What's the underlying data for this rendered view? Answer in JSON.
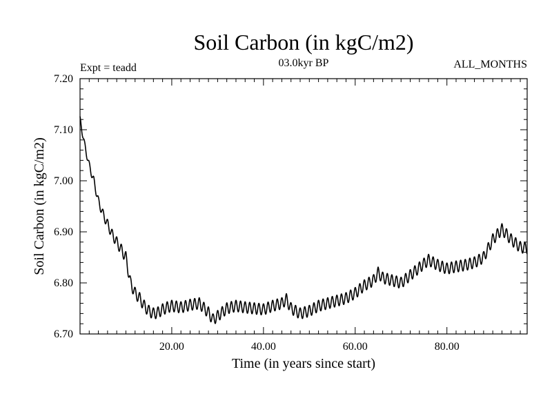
{
  "chart_data": {
    "type": "line",
    "title": "Soil Carbon (in kgC/m2)",
    "subtitle": "03.0kyr BP",
    "annotation_left": "Expt = teadd",
    "annotation_right": "ALL_MONTHS",
    "xlabel": "Time (in years since start)",
    "ylabel": "Soil Carbon (in kgC/m2)",
    "xlim": [
      0,
      97.5
    ],
    "ylim": [
      6.7,
      7.2
    ],
    "x_ticks": [
      20,
      40,
      60,
      80
    ],
    "x_tick_labels": [
      "20.00",
      "40.00",
      "60.00",
      "80.00"
    ],
    "y_ticks": [
      6.7,
      6.8,
      6.9,
      7.0,
      7.1,
      7.2
    ],
    "y_tick_labels": [
      "6.70",
      "6.80",
      "6.90",
      "7.00",
      "7.10",
      "7.20"
    ],
    "grid": false,
    "seasonal_cycle_amplitude": 0.011,
    "seasonal_cycle_period_years": 1,
    "series": [
      {
        "name": "Soil Carbon",
        "color": "#000000",
        "trend_x": [
          0,
          1,
          2,
          3,
          4,
          5,
          6,
          7,
          8,
          9,
          10,
          11,
          12,
          13,
          14,
          15,
          16,
          17,
          18,
          19,
          20,
          22,
          24,
          26,
          28,
          29,
          30,
          32,
          34,
          36,
          38,
          40,
          42,
          44,
          45,
          46,
          48,
          50,
          52,
          54,
          56,
          58,
          60,
          62,
          64,
          65,
          66,
          68,
          70,
          72,
          74,
          76,
          78,
          80,
          82,
          84,
          86,
          88,
          90,
          92,
          94,
          96,
          97.5
        ],
        "trend_y": [
          7.12,
          7.07,
          7.03,
          7.0,
          6.96,
          6.935,
          6.915,
          6.895,
          6.88,
          6.865,
          6.85,
          6.8,
          6.78,
          6.77,
          6.755,
          6.745,
          6.74,
          6.742,
          6.748,
          6.752,
          6.755,
          6.752,
          6.757,
          6.76,
          6.742,
          6.728,
          6.735,
          6.75,
          6.755,
          6.752,
          6.75,
          6.748,
          6.755,
          6.76,
          6.768,
          6.75,
          6.74,
          6.745,
          6.755,
          6.76,
          6.765,
          6.77,
          6.78,
          6.795,
          6.805,
          6.82,
          6.81,
          6.805,
          6.8,
          6.815,
          6.83,
          6.845,
          6.835,
          6.828,
          6.832,
          6.835,
          6.84,
          6.85,
          6.885,
          6.905,
          6.885,
          6.87,
          6.868
        ]
      }
    ]
  }
}
